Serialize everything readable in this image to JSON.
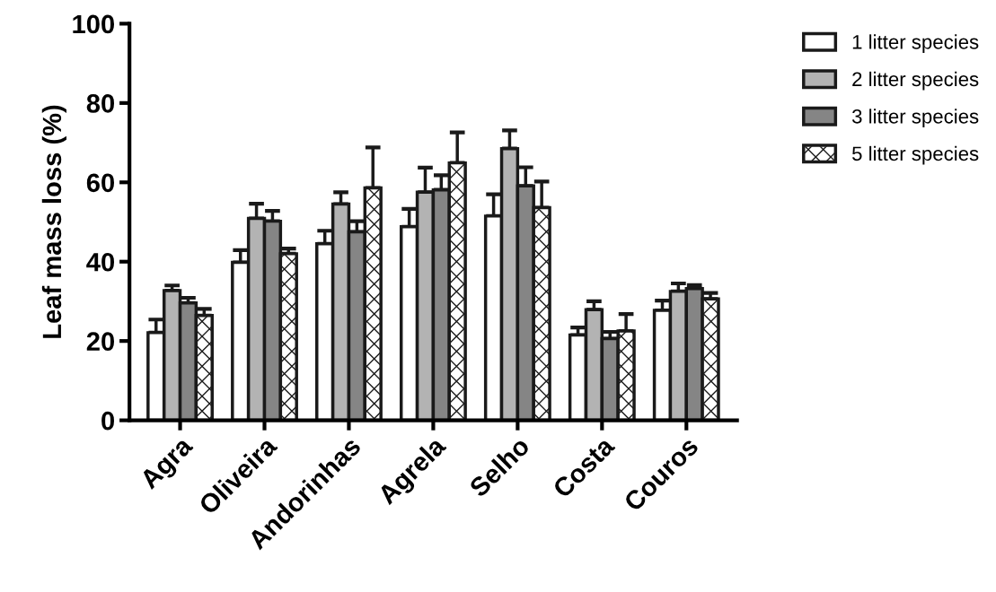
{
  "chart_data": {
    "type": "bar",
    "ylabel": "Leaf mass loss (%)",
    "categories": [
      "Agra",
      "Oliveira",
      "Andorinhas",
      "Agrela",
      "Selho",
      "Costa",
      "Couros"
    ],
    "ylim": [
      0,
      100
    ],
    "yticks": [
      0,
      20,
      40,
      60,
      80,
      100
    ],
    "grid": false,
    "legend": "top right",
    "series": [
      {
        "name": "1 litter species",
        "color": "#ffffff",
        "values": [
          22.1,
          39.8,
          44.5,
          48.8,
          51.5,
          21.5,
          27.7
        ],
        "errors": [
          [
            22.1,
            25.4
          ],
          [
            39.8,
            42.9
          ],
          [
            44.5,
            47.8
          ],
          [
            48.8,
            53.3
          ],
          [
            51.5,
            57.0
          ],
          [
            21.5,
            23.4
          ],
          [
            27.7,
            30.2
          ]
        ]
      },
      {
        "name": "2 litter species",
        "color": "#b3b3b3",
        "values": [
          32.7,
          50.9,
          54.5,
          57.5,
          68.5,
          27.9,
          32.5
        ],
        "errors": [
          [
            32.7,
            34.0
          ],
          [
            50.9,
            54.6
          ],
          [
            54.5,
            57.5
          ],
          [
            57.5,
            63.7
          ],
          [
            68.5,
            73.1
          ],
          [
            27.9,
            30.0
          ],
          [
            32.5,
            34.5
          ]
        ]
      },
      {
        "name": "3 litter species",
        "color": "#858585",
        "values": [
          29.6,
          50.2,
          47.5,
          58.1,
          59.1,
          20.6,
          33.2
        ],
        "errors": [
          [
            29.6,
            30.9
          ],
          [
            50.2,
            52.8
          ],
          [
            47.5,
            50.2
          ],
          [
            58.1,
            61.8
          ],
          [
            59.1,
            63.8
          ],
          [
            20.6,
            22.3
          ],
          [
            33.2,
            34.1
          ]
        ]
      },
      {
        "name": "5 litter species",
        "color": "#ffffff",
        "values": [
          26.4,
          42.0,
          58.6,
          64.9,
          53.6,
          22.5,
          30.6
        ],
        "errors": [
          [
            26.4,
            28.1
          ],
          [
            42.0,
            43.3
          ],
          [
            58.6,
            68.8
          ],
          [
            64.9,
            72.6
          ],
          [
            53.6,
            60.2
          ],
          [
            22.5,
            26.8
          ],
          [
            30.6,
            32.1
          ]
        ]
      }
    ]
  }
}
